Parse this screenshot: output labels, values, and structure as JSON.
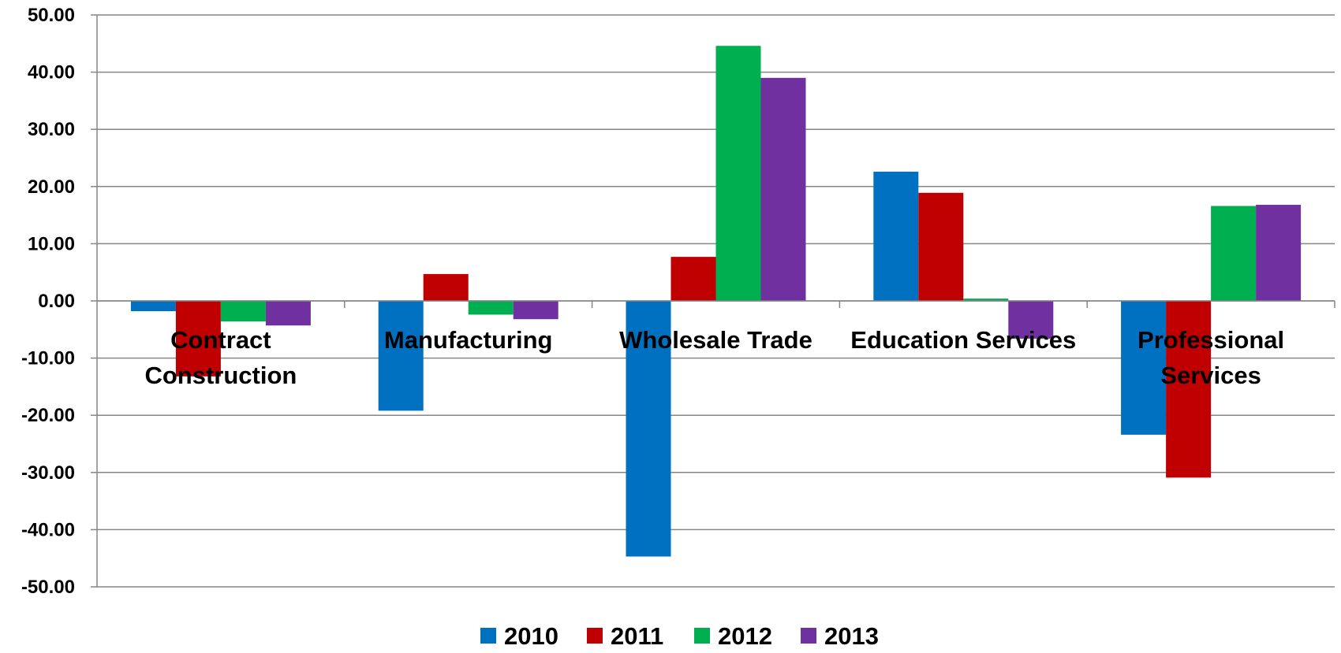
{
  "chart_data": {
    "type": "bar",
    "categories": [
      [
        "Contract",
        "Construction"
      ],
      [
        "Manufacturing"
      ],
      [
        "Wholesale Trade"
      ],
      [
        "Education Services"
      ],
      [
        "Professional",
        "Services"
      ]
    ],
    "series": [
      {
        "name": "2010",
        "color": "#0070C0",
        "values": [
          -1.8,
          -19.2,
          -44.7,
          22.6,
          -23.4
        ]
      },
      {
        "name": "2011",
        "color": "#C00000",
        "values": [
          -13.2,
          4.7,
          7.7,
          18.9,
          -30.9
        ]
      },
      {
        "name": "2012",
        "color": "#00B050",
        "values": [
          -3.6,
          -2.4,
          44.6,
          0.4,
          16.6
        ]
      },
      {
        "name": "2013",
        "color": "#7030A0",
        "values": [
          -4.3,
          -3.2,
          39.0,
          -6.6,
          16.8
        ]
      }
    ],
    "y_ticks": [
      "50.00",
      "40.00",
      "30.00",
      "20.00",
      "10.00",
      "0.00",
      "-10.00",
      "-20.00",
      "-30.00",
      "-40.00",
      "-50.00"
    ],
    "ylim": [
      -50,
      50
    ],
    "grid": true,
    "legend_position": "bottom"
  }
}
